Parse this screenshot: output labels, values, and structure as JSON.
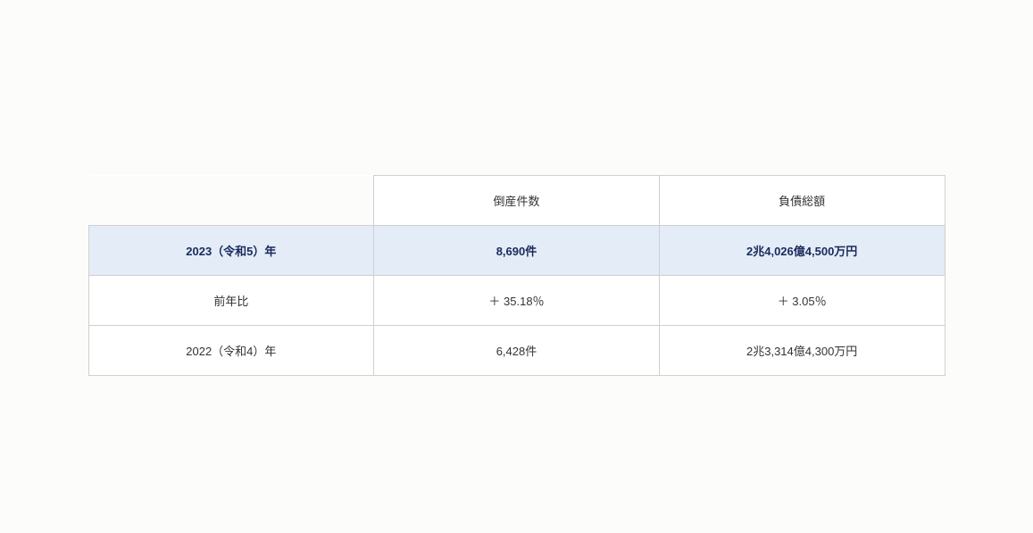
{
  "table": {
    "headers": {
      "col1": "",
      "col2": "倒産件数",
      "col3": "負債総額"
    },
    "rows": [
      {
        "label": "2023（令和5）年",
        "bankruptcies": "8,690件",
        "liabilities": "2兆4,026億4,500万円",
        "highlighted": true
      },
      {
        "label": "前年比",
        "bankruptcies": "＋ 35.18％",
        "liabilities": "＋ 3.05％",
        "highlighted": false
      },
      {
        "label": "2022（令和4）年",
        "bankruptcies": "6,428件",
        "liabilities": "2兆3,314億4,300万円",
        "highlighted": false
      }
    ],
    "styles": {
      "highlight_bg": "#e3ecf7",
      "highlight_text": "#1a2a5c",
      "border_color": "#d0d0d0",
      "body_bg": "#fcfcfa",
      "cell_bg": "#ffffff",
      "text_color": "#333333",
      "font_size": 13
    }
  }
}
